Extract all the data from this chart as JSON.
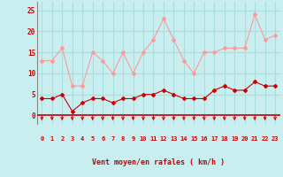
{
  "x": [
    0,
    1,
    2,
    3,
    4,
    5,
    6,
    7,
    8,
    9,
    10,
    11,
    12,
    13,
    14,
    15,
    16,
    17,
    18,
    19,
    20,
    21,
    22,
    23
  ],
  "rafales": [
    13,
    13,
    16,
    7,
    7,
    15,
    13,
    10,
    15,
    10,
    15,
    18,
    23,
    18,
    13,
    10,
    15,
    15,
    16,
    16,
    16,
    24,
    18,
    19
  ],
  "moyen": [
    4,
    4,
    5,
    1,
    3,
    4,
    4,
    3,
    4,
    4,
    5,
    5,
    6,
    5,
    4,
    4,
    4,
    6,
    7,
    6,
    6,
    8,
    7,
    7
  ],
  "bg_color": "#c8eef0",
  "grid_color": "#aadddd",
  "line_color_rafales": "#ff9999",
  "line_color_moyen": "#cc0000",
  "xlabel": "Vent moyen/en rafales ( km/h )",
  "ylim": [
    -2,
    27
  ],
  "yticks": [
    0,
    5,
    10,
    15,
    20,
    25
  ],
  "xlim": [
    -0.5,
    23.5
  ],
  "arrow_color": "#cc0000",
  "xlabel_color": "#cc0000",
  "tick_color": "#cc0000",
  "spine_color": "#cc0000",
  "spine_bottom_color": "#888888"
}
